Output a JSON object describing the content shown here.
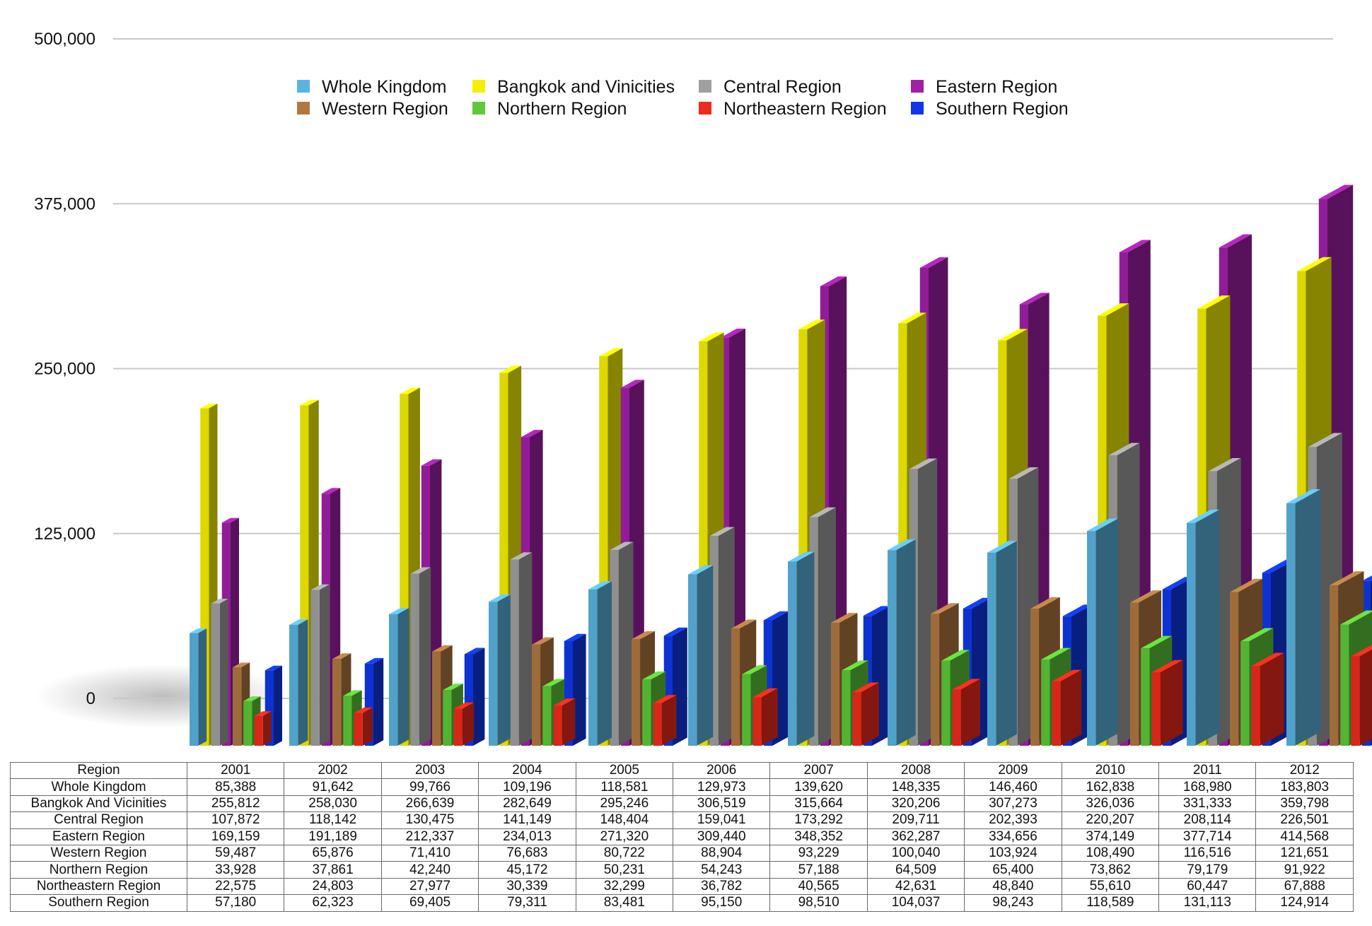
{
  "chart_data": {
    "type": "bar",
    "title": "",
    "xlabel": "",
    "ylabel": "",
    "ylim": [
      0,
      500000
    ],
    "yticks": [
      "0",
      "125,000",
      "250,000",
      "375,000",
      "500,000"
    ],
    "grid": true,
    "legend_position": "top",
    "categories": [
      "2001",
      "2002",
      "2003",
      "2004",
      "2005",
      "2006",
      "2007",
      "2008",
      "2009",
      "2010",
      "2011",
      "2012"
    ],
    "series": [
      {
        "name": "Whole Kingdom",
        "color": "#5ab4e0",
        "values": [
          85388,
          91642,
          99766,
          109196,
          118581,
          129973,
          139620,
          148335,
          146460,
          162838,
          168980,
          183803
        ]
      },
      {
        "name": "Bangkok and Vinicities",
        "color": "#f4f000",
        "values": [
          255812,
          258030,
          266639,
          282649,
          295246,
          306519,
          315664,
          320206,
          307273,
          326036,
          331333,
          359798
        ]
      },
      {
        "name": "Central Region",
        "color": "#a0a0a0",
        "values": [
          107872,
          118142,
          130475,
          141149,
          148404,
          159041,
          173292,
          209711,
          202393,
          220207,
          208114,
          226501
        ]
      },
      {
        "name": "Eastern Region",
        "color": "#a020a8",
        "values": [
          169159,
          191189,
          212337,
          234013,
          271320,
          309440,
          348352,
          362287,
          334656,
          374149,
          377714,
          414568
        ]
      },
      {
        "name": "Western Region",
        "color": "#b07840",
        "values": [
          59487,
          65876,
          71410,
          76683,
          80722,
          88904,
          93229,
          100040,
          103924,
          108490,
          116516,
          121651
        ]
      },
      {
        "name": "Northern Region",
        "color": "#5cc83a",
        "values": [
          33928,
          37861,
          42240,
          45172,
          50231,
          54243,
          57188,
          64509,
          65400,
          73862,
          79179,
          91922
        ]
      },
      {
        "name": "Northeastern Region",
        "color": "#f02a1c",
        "values": [
          22575,
          24803,
          27977,
          30339,
          32299,
          36782,
          40565,
          42631,
          48840,
          55610,
          60447,
          67888
        ]
      },
      {
        "name": "Southern Region",
        "color": "#1038e8",
        "values": [
          57180,
          62323,
          69405,
          79311,
          83481,
          95150,
          98510,
          104037,
          98243,
          118589,
          131113,
          124914
        ]
      }
    ],
    "table": {
      "header": [
        "Region",
        "2001",
        "2002",
        "2003",
        "2004",
        "2005",
        "2006",
        "2007",
        "2008",
        "2009",
        "2010",
        "2011",
        "2012"
      ],
      "rows": [
        [
          "Whole Kingdom",
          "85,388",
          "91,642",
          "99,766",
          "109,196",
          "118,581",
          "129,973",
          "139,620",
          "148,335",
          "146,460",
          "162,838",
          "168,980",
          "183,803"
        ],
        [
          "Bangkok And Vicinities",
          "255,812",
          "258,030",
          "266,639",
          "282,649",
          "295,246",
          "306,519",
          "315,664",
          "320,206",
          "307,273",
          "326,036",
          "331,333",
          "359,798"
        ],
        [
          "Central Region",
          "107,872",
          "118,142",
          "130,475",
          "141,149",
          "148,404",
          "159,041",
          "173,292",
          "209,711",
          "202,393",
          "220,207",
          "208,114",
          "226,501"
        ],
        [
          "Eastern Region",
          "169,159",
          "191,189",
          "212,337",
          "234,013",
          "271,320",
          "309,440",
          "348,352",
          "362,287",
          "334,656",
          "374,149",
          "377,714",
          "414,568"
        ],
        [
          "Western Region",
          "59,487",
          "65,876",
          "71,410",
          "76,683",
          "80,722",
          "88,904",
          "93,229",
          "100,040",
          "103,924",
          "108,490",
          "116,516",
          "121,651"
        ],
        [
          "Northern Region",
          "33,928",
          "37,861",
          "42,240",
          "45,172",
          "50,231",
          "54,243",
          "57,188",
          "64,509",
          "65,400",
          "73,862",
          "79,179",
          "91,922"
        ],
        [
          "Northeastern Region",
          "22,575",
          "24,803",
          "27,977",
          "30,339",
          "32,299",
          "36,782",
          "40,565",
          "42,631",
          "48,840",
          "55,610",
          "60,447",
          "67,888"
        ],
        [
          "Southern Region",
          "57,180",
          "62,323",
          "69,405",
          "79,311",
          "83,481",
          "95,150",
          "98,510",
          "104,037",
          "98,243",
          "118,589",
          "131,113",
          "124,914"
        ]
      ]
    }
  }
}
